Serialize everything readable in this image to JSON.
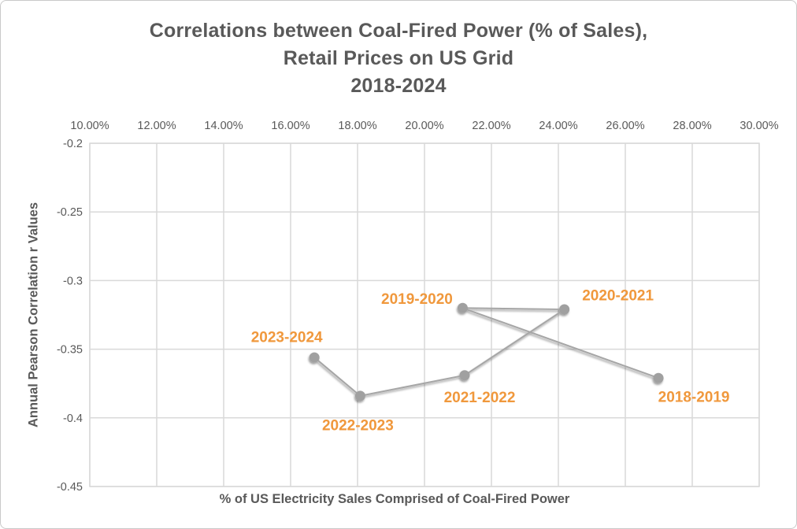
{
  "chart_data": {
    "type": "scatter",
    "title_lines": [
      "Correlations between Coal-Fired Power (% of Sales),",
      "Retail Prices on US Grid",
      "2018-2024"
    ],
    "xlabel": "% of US Electricity Sales Comprised of Coal-Fired Power",
    "ylabel": "Annual Pearson Correlation r Values",
    "x_axis": {
      "position": "top",
      "min": 10,
      "max": 30,
      "grid": true,
      "ticks": [
        {
          "value": 10,
          "label": "10.00%"
        },
        {
          "value": 12,
          "label": "12.00%"
        },
        {
          "value": 14,
          "label": "14.00%"
        },
        {
          "value": 16,
          "label": "16.00%"
        },
        {
          "value": 18,
          "label": "18.00%"
        },
        {
          "value": 20,
          "label": "20.00%"
        },
        {
          "value": 22,
          "label": "22.00%"
        },
        {
          "value": 24,
          "label": "24.00%"
        },
        {
          "value": 26,
          "label": "26.00%"
        },
        {
          "value": 28,
          "label": "28.00%"
        },
        {
          "value": 30,
          "label": "30.00%"
        }
      ]
    },
    "y_axis": {
      "position": "left",
      "min": -0.45,
      "max": -0.2,
      "grid": true,
      "ticks": [
        {
          "value": -0.2,
          "label": "-0.2"
        },
        {
          "value": -0.25,
          "label": "-0.25"
        },
        {
          "value": -0.3,
          "label": "-0.3"
        },
        {
          "value": -0.35,
          "label": "-0.35"
        },
        {
          "value": -0.4,
          "label": "-0.4"
        },
        {
          "value": -0.45,
          "label": "-0.45"
        }
      ]
    },
    "legend": "none",
    "series": [
      {
        "points": [
          {
            "label": "2018-2019",
            "x": 26.99,
            "y": -0.371,
            "label_dx": 45,
            "label_dy": 24
          },
          {
            "label": "2019-2020",
            "x": 21.14,
            "y": -0.32,
            "label_dx": -58,
            "label_dy": -12
          },
          {
            "label": "2020-2021",
            "x": 24.18,
            "y": -0.321,
            "label_dx": 68,
            "label_dy": -18
          },
          {
            "label": "2021-2022",
            "x": 21.2,
            "y": -0.369,
            "label_dx": 19,
            "label_dy": 28
          },
          {
            "label": "2022-2023",
            "x": 18.08,
            "y": -0.384,
            "label_dx": -3,
            "label_dy": 37
          },
          {
            "label": "2023-2024",
            "x": 16.71,
            "y": -0.356,
            "label_dx": -35,
            "label_dy": -26
          }
        ]
      }
    ],
    "colors": {
      "text": "#595959",
      "grid": "#d9d9d9",
      "plot_border": "#d9d9d9",
      "line": "#a6a6a6",
      "marker": "#a0a0a0",
      "point_label": "#f0983c"
    }
  }
}
